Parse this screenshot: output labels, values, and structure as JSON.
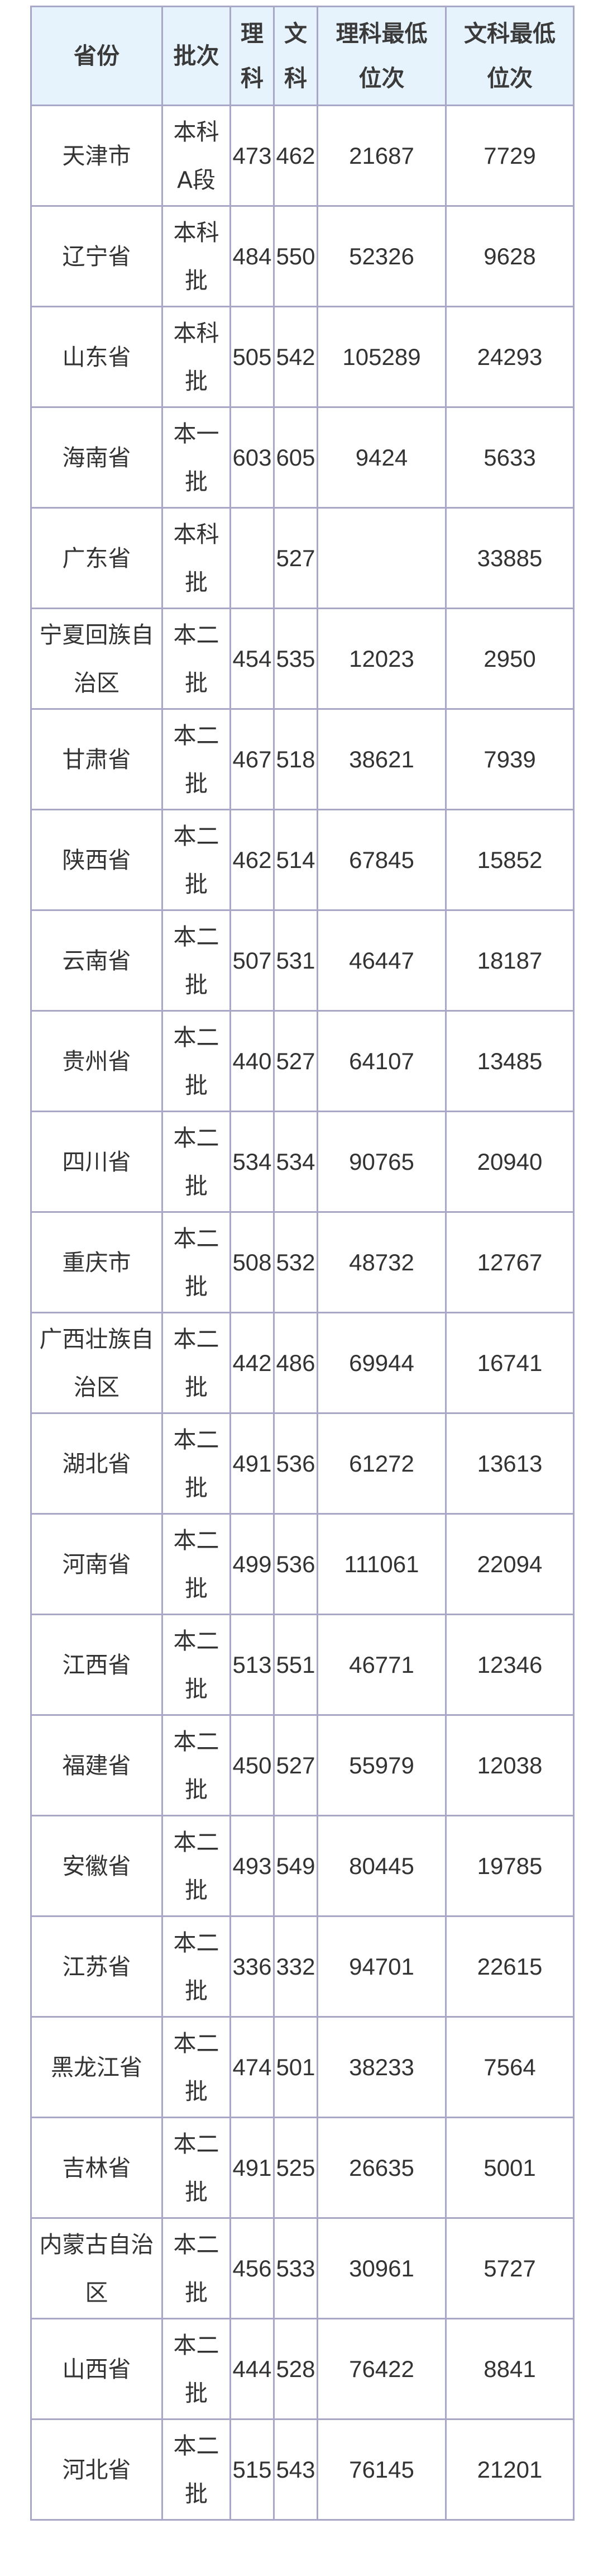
{
  "colors": {
    "header_bg": "#e6f3fc",
    "border": "#a9a7c8",
    "text": "#333333"
  },
  "table": {
    "headers": [
      "省份",
      "批次",
      "理科",
      "文科",
      "理科最低位次",
      "文科最低位次"
    ],
    "rows": [
      [
        "天津市",
        "本科A段",
        "473",
        "462",
        "21687",
        "7729"
      ],
      [
        "辽宁省",
        "本科批",
        "484",
        "550",
        "52326",
        "9628"
      ],
      [
        "山东省",
        "本科批",
        "505",
        "542",
        "105289",
        "24293"
      ],
      [
        "海南省",
        "本一批",
        "603",
        "605",
        "9424",
        "5633"
      ],
      [
        "广东省",
        "本科批",
        "",
        "527",
        "",
        "33885"
      ],
      [
        "宁夏回族自治区",
        "本二批",
        "454",
        "535",
        "12023",
        "2950"
      ],
      [
        "甘肃省",
        "本二批",
        "467",
        "518",
        "38621",
        "7939"
      ],
      [
        "陕西省",
        "本二批",
        "462",
        "514",
        "67845",
        "15852"
      ],
      [
        "云南省",
        "本二批",
        "507",
        "531",
        "46447",
        "18187"
      ],
      [
        "贵州省",
        "本二批",
        "440",
        "527",
        "64107",
        "13485"
      ],
      [
        "四川省",
        "本二批",
        "534",
        "534",
        "90765",
        "20940"
      ],
      [
        "重庆市",
        "本二批",
        "508",
        "532",
        "48732",
        "12767"
      ],
      [
        "广西壮族自治区",
        "本二批",
        "442",
        "486",
        "69944",
        "16741"
      ],
      [
        "湖北省",
        "本二批",
        "491",
        "536",
        "61272",
        "13613"
      ],
      [
        "河南省",
        "本二批",
        "499",
        "536",
        "111061",
        "22094"
      ],
      [
        "江西省",
        "本二批",
        "513",
        "551",
        "46771",
        "12346"
      ],
      [
        "福建省",
        "本二批",
        "450",
        "527",
        "55979",
        "12038"
      ],
      [
        "安徽省",
        "本二批",
        "493",
        "549",
        "80445",
        "19785"
      ],
      [
        "江苏省",
        "本二批",
        "336",
        "332",
        "94701",
        "22615"
      ],
      [
        "黑龙江省",
        "本二批",
        "474",
        "501",
        "38233",
        "7564"
      ],
      [
        "吉林省",
        "本二批",
        "491",
        "525",
        "26635",
        "5001"
      ],
      [
        "内蒙古自治区",
        "本二批",
        "456",
        "533",
        "30961",
        "5727"
      ],
      [
        "山西省",
        "本二批",
        "444",
        "528",
        "76422",
        "8841"
      ],
      [
        "河北省",
        "本二批",
        "515",
        "543",
        "76145",
        "21201"
      ]
    ]
  }
}
